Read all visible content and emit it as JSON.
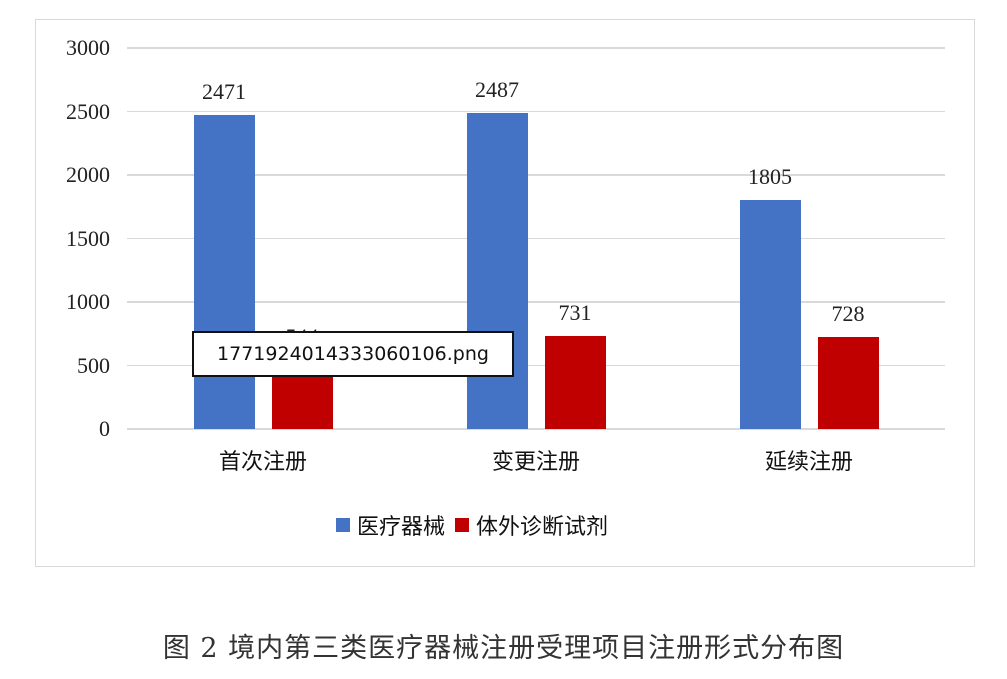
{
  "chart_data": {
    "type": "bar",
    "title": "",
    "categories": [
      "首次注册",
      "变更注册",
      "延续注册"
    ],
    "series": [
      {
        "name": "医疗器械",
        "color": "#4472C4",
        "values": [
          2471,
          2487,
          1805
        ]
      },
      {
        "name": "体外诊断试剂",
        "color": "#C00000",
        "values": [
          544,
          731,
          728
        ]
      }
    ],
    "xlabel": "",
    "ylabel": "",
    "ylim": [
      0,
      3000
    ],
    "yticks": [
      "3000",
      "2500",
      "2000",
      "1500",
      "1000",
      "500",
      "0"
    ],
    "grid": true,
    "legend_position": "bottom",
    "data_labels": true
  },
  "caption": "图 2  境内第三类医疗器械注册受理项目注册形式分布图",
  "tooltip": {
    "text": "1771924014333060106.png"
  }
}
